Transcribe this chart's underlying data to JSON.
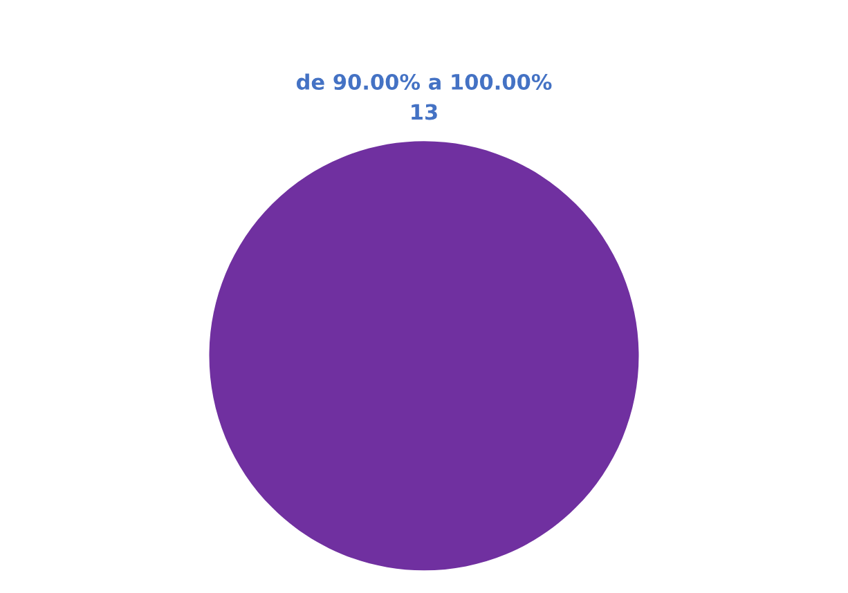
{
  "chart_data": {
    "type": "pie",
    "categories": [
      "de 90.00% a 100.00%"
    ],
    "values": [
      13
    ],
    "colors": [
      "#7030a0"
    ],
    "data_labels": true
  }
}
